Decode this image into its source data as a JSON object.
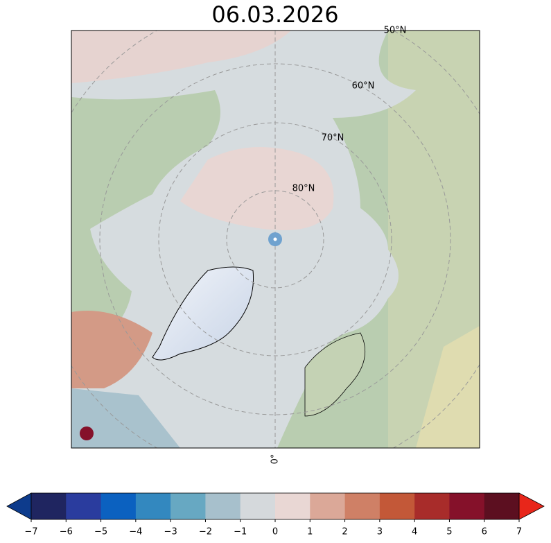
{
  "title": "06.03.2026",
  "map": {
    "lat_labels": [
      "50°N",
      "60°N",
      "70°N",
      "80°N"
    ],
    "lon_label": "0°"
  },
  "colorbar": {
    "lim": [
      -7,
      7
    ],
    "ticks": [
      {
        "value": -7,
        "label": "−7"
      },
      {
        "value": -6,
        "label": "−6"
      },
      {
        "value": -5,
        "label": "−5"
      },
      {
        "value": -4,
        "label": "−4"
      },
      {
        "value": -3,
        "label": "−3"
      },
      {
        "value": -2,
        "label": "−2"
      },
      {
        "value": -1,
        "label": "−1"
      },
      0,
      1,
      2,
      3,
      4,
      5,
      6,
      7
    ],
    "colors": [
      "#1f2560",
      "#2a3c9e",
      "#0b61c0",
      "#3388bf",
      "#67a8c2",
      "#a7c0cc",
      "#d5d9dc",
      "#e9d7d4",
      "#dba898",
      "#cf8066",
      "#c35838",
      "#a82c2a",
      "#85112a",
      "#5c0f20"
    ],
    "under_color": "#0d3b8c",
    "over_color": "#e8261a"
  }
}
